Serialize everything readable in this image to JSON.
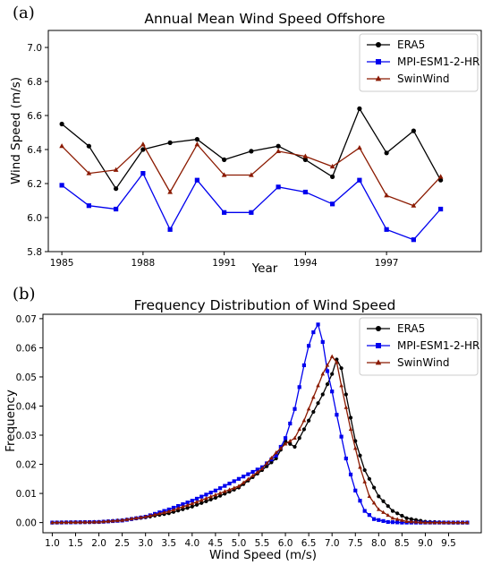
{
  "chart_data": [
    {
      "type": "line",
      "panel_label": "(a)",
      "title": "Annual Mean Wind Speed Offshore",
      "xlabel": "Year",
      "ylabel": "Wind Speed (m/s)",
      "xlim": [
        1984.5,
        2000.5
      ],
      "ylim": [
        5.8,
        7.1
      ],
      "xticks": [
        1985,
        1988,
        1991,
        1994,
        1997
      ],
      "yticks": [
        5.8,
        6.0,
        6.2,
        6.4,
        6.6,
        6.8,
        7.0
      ],
      "grid": false,
      "legend_placement": "top-right",
      "x": [
        1985,
        1986,
        1987,
        1988,
        1989,
        1990,
        1991,
        1992,
        1993,
        1994,
        1995,
        1996,
        1997,
        1998,
        1999
      ],
      "series": [
        {
          "name": "ERA5",
          "color": "#000000",
          "marker": "circle",
          "values": [
            6.55,
            6.42,
            6.17,
            6.4,
            6.44,
            6.46,
            6.34,
            6.39,
            6.42,
            6.34,
            6.24,
            6.64,
            6.38,
            6.51,
            6.22
          ]
        },
        {
          "name": "MPI-ESM1-2-HR",
          "color": "#0000ee",
          "marker": "square",
          "values": [
            6.19,
            6.07,
            6.05,
            6.26,
            5.93,
            6.22,
            6.03,
            6.03,
            6.18,
            6.15,
            6.08,
            6.22,
            5.93,
            5.87,
            6.05
          ]
        },
        {
          "name": "SwinWind",
          "color": "#8b1a00",
          "marker": "triangle",
          "values": [
            6.42,
            6.26,
            6.28,
            6.43,
            6.15,
            6.43,
            6.25,
            6.25,
            6.39,
            6.36,
            6.3,
            6.41,
            6.13,
            6.07,
            6.24
          ]
        }
      ]
    },
    {
      "type": "line",
      "panel_label": "(b)",
      "title": "Frequency Distribution of Wind Speed",
      "xlabel": "Wind Speed (m/s)",
      "ylabel": "Frequency",
      "xlim": [
        0.8,
        10.2
      ],
      "ylim": [
        -0.0035,
        0.0715
      ],
      "xticks": [
        "1.0",
        "1.5",
        "2.0",
        "2.5",
        "3.0",
        "3.5",
        "4.0",
        "4.5",
        "5.0",
        "5.5",
        "6.0",
        "6.5",
        "7.0",
        "7.5",
        "8.0",
        "8.5",
        "9.0",
        "9.5"
      ],
      "yticks": [
        "0.00",
        "0.01",
        "0.02",
        "0.03",
        "0.04",
        "0.05",
        "0.06",
        "0.07"
      ],
      "grid": false,
      "legend_placement": "top-right",
      "x_range": {
        "start": 1.0,
        "end": 9.9,
        "step": 0.1
      },
      "series": [
        {
          "name": "ERA5",
          "color": "#000000",
          "marker": "circle",
          "curve": [
            [
              1.0,
              0.0
            ],
            [
              2.0,
              0.0002
            ],
            [
              2.5,
              0.0008
            ],
            [
              3.0,
              0.0018
            ],
            [
              3.5,
              0.0032
            ],
            [
              4.0,
              0.0055
            ],
            [
              4.5,
              0.0085
            ],
            [
              5.0,
              0.012
            ],
            [
              5.5,
              0.018
            ],
            [
              5.8,
              0.022
            ],
            [
              6.0,
              0.028
            ],
            [
              6.2,
              0.026
            ],
            [
              6.4,
              0.032
            ],
            [
              6.6,
              0.038
            ],
            [
              6.8,
              0.044
            ],
            [
              7.0,
              0.051
            ],
            [
              7.1,
              0.056
            ],
            [
              7.2,
              0.053
            ],
            [
              7.3,
              0.044
            ],
            [
              7.5,
              0.028
            ],
            [
              7.7,
              0.018
            ],
            [
              8.0,
              0.009
            ],
            [
              8.3,
              0.004
            ],
            [
              8.6,
              0.0015
            ],
            [
              9.0,
              0.0003
            ],
            [
              9.5,
              0.0
            ],
            [
              9.9,
              0.0
            ]
          ]
        },
        {
          "name": "MPI-ESM1-2-HR",
          "color": "#0000ee",
          "marker": "square",
          "curve": [
            [
              1.0,
              0.0
            ],
            [
              2.0,
              0.0002
            ],
            [
              2.5,
              0.0007
            ],
            [
              3.0,
              0.002
            ],
            [
              3.5,
              0.0045
            ],
            [
              4.0,
              0.0075
            ],
            [
              4.5,
              0.011
            ],
            [
              5.0,
              0.015
            ],
            [
              5.5,
              0.019
            ],
            [
              5.8,
              0.023
            ],
            [
              6.0,
              0.029
            ],
            [
              6.2,
              0.039
            ],
            [
              6.4,
              0.054
            ],
            [
              6.55,
              0.064
            ],
            [
              6.7,
              0.068
            ],
            [
              6.8,
              0.062
            ],
            [
              6.9,
              0.052
            ],
            [
              7.0,
              0.045
            ],
            [
              7.1,
              0.037
            ],
            [
              7.3,
              0.022
            ],
            [
              7.5,
              0.011
            ],
            [
              7.7,
              0.004
            ],
            [
              7.9,
              0.0012
            ],
            [
              8.2,
              0.0002
            ],
            [
              8.5,
              0.0
            ],
            [
              9.9,
              0.0
            ]
          ]
        },
        {
          "name": "SwinWind",
          "color": "#8b1a00",
          "marker": "triangle",
          "curve": [
            [
              1.0,
              0.0
            ],
            [
              2.0,
              0.0002
            ],
            [
              2.5,
              0.0008
            ],
            [
              3.0,
              0.002
            ],
            [
              3.5,
              0.0038
            ],
            [
              4.0,
              0.0065
            ],
            [
              4.5,
              0.0095
            ],
            [
              5.0,
              0.0125
            ],
            [
              5.5,
              0.0185
            ],
            [
              5.8,
              0.024
            ],
            [
              6.0,
              0.027
            ],
            [
              6.2,
              0.029
            ],
            [
              6.4,
              0.035
            ],
            [
              6.6,
              0.043
            ],
            [
              6.8,
              0.051
            ],
            [
              7.0,
              0.057
            ],
            [
              7.1,
              0.055
            ],
            [
              7.2,
              0.047
            ],
            [
              7.4,
              0.032
            ],
            [
              7.6,
              0.019
            ],
            [
              7.8,
              0.009
            ],
            [
              8.0,
              0.0045
            ],
            [
              8.3,
              0.0015
            ],
            [
              8.6,
              0.0004
            ],
            [
              9.0,
              0.0
            ],
            [
              9.9,
              0.0
            ]
          ]
        }
      ]
    }
  ]
}
